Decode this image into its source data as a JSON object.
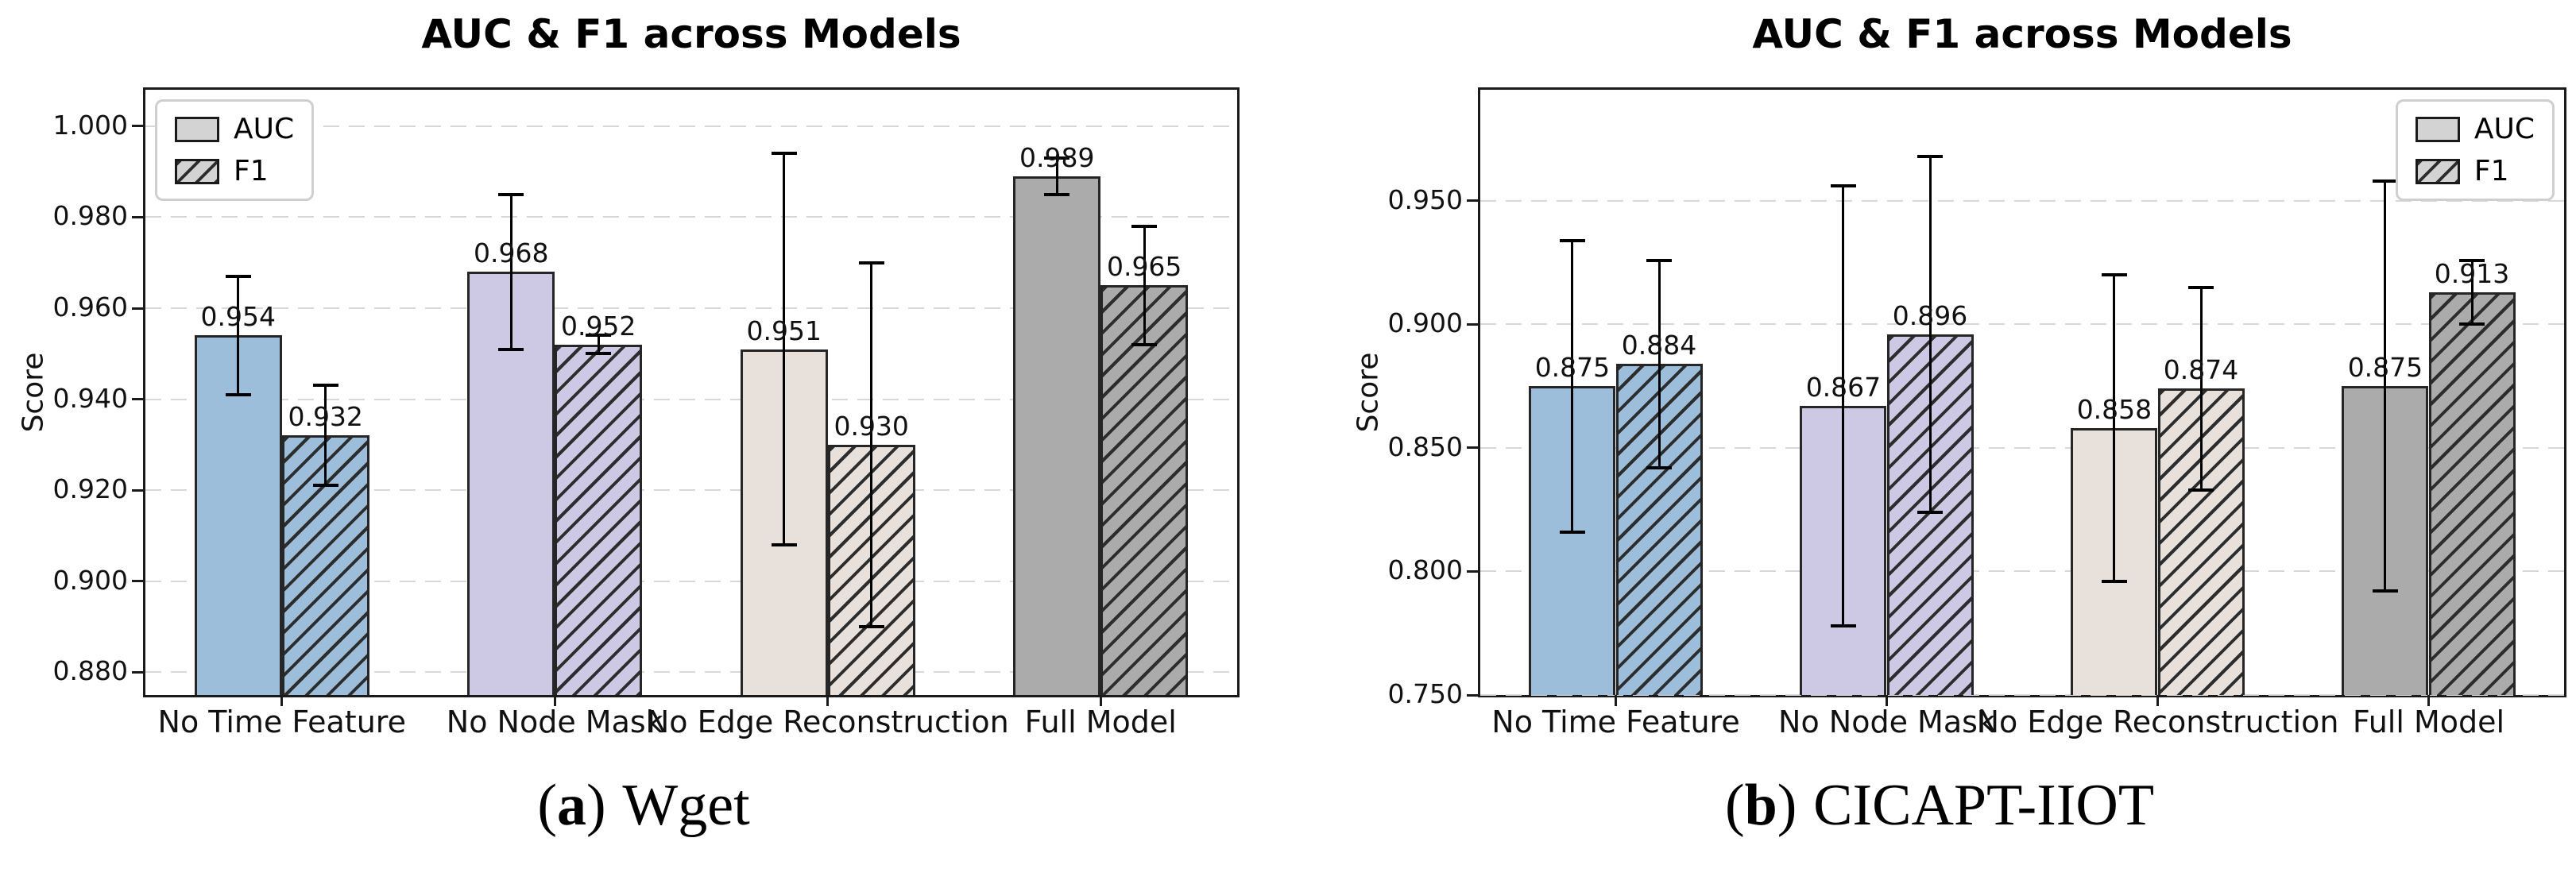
{
  "styles": {
    "bar_edge": "#262626",
    "hatch_color": "#2d2d2d",
    "grid_color": "#d8d8d8",
    "axis_color": "#1a1a1a",
    "error_color": "#000000",
    "legend_swatch": "#d3d3d3",
    "legend_border": "#cfcfcf",
    "text_color": "#111111",
    "background": "#ffffff"
  },
  "chart_data": [
    {
      "type": "bar",
      "title": "AUC & F1 across Models",
      "ylabel": "Score",
      "caption": {
        "open": "(",
        "index": "a",
        "close": ")",
        "label": "Wget"
      },
      "categories": [
        "No Time Feature",
        "No Node Mask",
        "No Edge Reconstruction",
        "Full Model"
      ],
      "series": [
        {
          "name": "AUC",
          "hatch": false,
          "values": [
            0.954,
            0.968,
            0.951,
            0.989
          ],
          "errors": [
            0.013,
            0.017,
            0.043,
            0.004
          ]
        },
        {
          "name": "F1",
          "hatch": true,
          "values": [
            0.932,
            0.952,
            0.93,
            0.965
          ],
          "errors": [
            0.011,
            0.002,
            0.04,
            0.013
          ]
        }
      ],
      "category_colors": [
        "#9dbedb",
        "#cdc9e4",
        "#e8e1db",
        "#ababab"
      ],
      "ylim": [
        0.875,
        1.008
      ],
      "yticks": [
        1.0,
        0.98,
        0.96,
        0.94,
        0.92,
        0.9,
        0.88
      ],
      "ytick_decimals": 3,
      "value_decimals": 3,
      "legend_position": "top-left",
      "grid": "dashed-horizontal"
    },
    {
      "type": "bar",
      "title": "AUC & F1 across Models",
      "ylabel": "Score",
      "caption": {
        "open": "(",
        "index": "b",
        "close": ")",
        "label": "CICAPT-IIOT"
      },
      "categories": [
        "No Time Feature",
        "No Node Mask",
        "No Edge Reconstruction",
        "Full Model"
      ],
      "series": [
        {
          "name": "AUC",
          "hatch": false,
          "values": [
            0.875,
            0.867,
            0.858,
            0.875
          ],
          "errors": [
            0.059,
            0.089,
            0.062,
            0.083
          ]
        },
        {
          "name": "F1",
          "hatch": true,
          "values": [
            0.884,
            0.896,
            0.874,
            0.913
          ],
          "errors": [
            0.042,
            0.072,
            0.041,
            0.013
          ]
        }
      ],
      "category_colors": [
        "#9dbedb",
        "#cdc9e4",
        "#e8e1db",
        "#ababab"
      ],
      "ylim": [
        0.75,
        0.995
      ],
      "yticks": [
        0.95,
        0.9,
        0.85,
        0.8,
        0.75
      ],
      "ytick_decimals": 3,
      "value_decimals": 3,
      "legend_position": "top-right",
      "grid": "dashed-horizontal"
    }
  ]
}
